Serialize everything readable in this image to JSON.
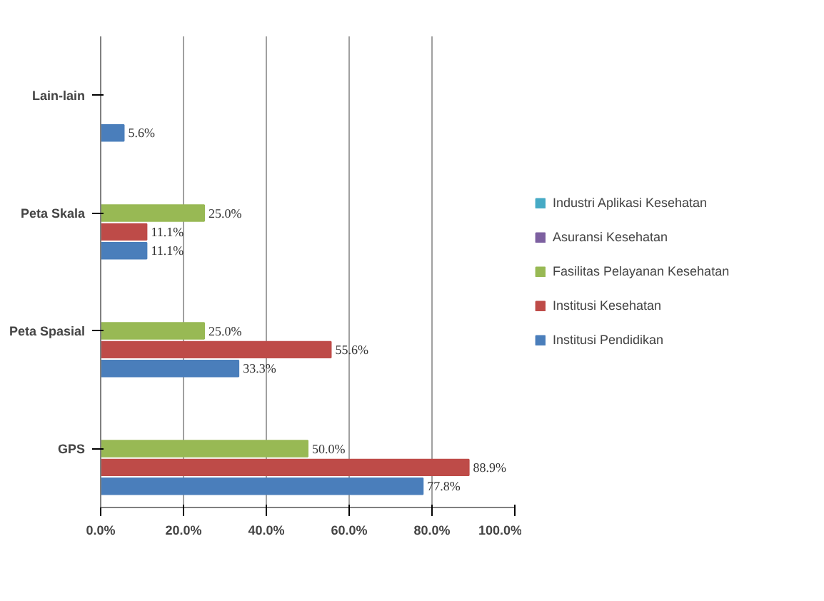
{
  "chart_data": {
    "type": "bar",
    "orientation": "horizontal",
    "categories": [
      "Lain-lain",
      "Peta Skala",
      "Peta Spasial",
      "GPS"
    ],
    "series": [
      {
        "name": "Institusi Pendidikan",
        "color": "#4a7ebb",
        "values": [
          5.6,
          11.1,
          33.3,
          77.8
        ],
        "value_labels": [
          "5.6%",
          "11.1%",
          "33.3%",
          "77.8%"
        ]
      },
      {
        "name": "Institusi Kesehatan",
        "color": "#be4b48",
        "values": [
          0,
          11.1,
          55.6,
          88.9
        ],
        "value_labels": [
          null,
          "11.1%",
          "55.6%",
          "88.9%"
        ]
      },
      {
        "name": "Fasilitas Pelayanan Kesehatan",
        "color": "#98b954",
        "values": [
          0,
          25.0,
          25.0,
          50.0
        ],
        "value_labels": [
          null,
          "25.0%",
          "25.0%",
          "50.0%"
        ]
      },
      {
        "name": "Asuransi Kesehatan",
        "color": "#7d60a0",
        "values": [
          0,
          0,
          0,
          0
        ],
        "value_labels": [
          null,
          null,
          null,
          null
        ]
      },
      {
        "name": "Industri Aplikasi Kesehatan",
        "color": "#46aac5",
        "values": [
          0,
          0,
          0,
          0
        ],
        "value_labels": [
          null,
          null,
          null,
          null
        ]
      }
    ],
    "xlim": [
      0,
      100
    ],
    "xticks": [
      {
        "value": 0,
        "label": "0.0%"
      },
      {
        "value": 20,
        "label": "20.0%"
      },
      {
        "value": 40,
        "label": "40.0%"
      },
      {
        "value": 60,
        "label": "60.0%"
      },
      {
        "value": 80,
        "label": "80.0%"
      },
      {
        "value": 100,
        "label": "100.0%"
      }
    ],
    "grid": "x",
    "legend": "right"
  }
}
